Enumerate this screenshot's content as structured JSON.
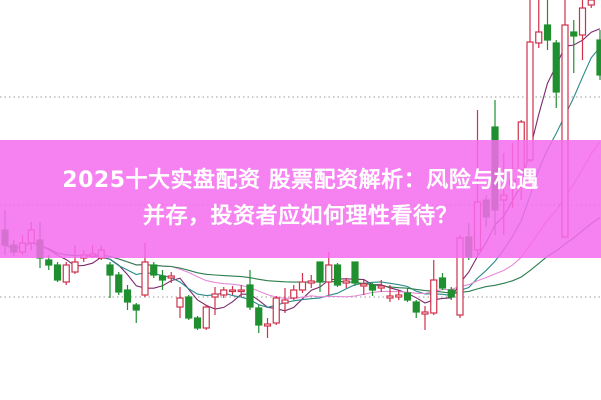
{
  "article": {
    "title_line1": "2025十大实盘配资 股票配资解析：风险与机遇",
    "title_line2": "并存，投资者应如何理性看待？"
  },
  "colors": {
    "banner": "#f56cee",
    "bull": "#d0304a",
    "bear": "#1f8f2f",
    "ma5": "#7b2a6e",
    "ma10": "#2a8a8a",
    "ma20": "#e38ad8",
    "ma40": "#2e7d4f",
    "grid": "#999999"
  },
  "chart_data": {
    "type": "candlestick",
    "title": "",
    "xlabel": "",
    "ylabel": "",
    "ylim": [
      0,
      40
    ],
    "grid": "dotted horizontal",
    "gridlines": [
      10.3,
      19.5,
      30.3
    ],
    "moving_averages": [
      5,
      10,
      20,
      40
    ],
    "candles": [
      [
        17.0,
        15.5,
        19.0,
        14.5
      ],
      [
        15.5,
        14.8,
        16.0,
        14.4
      ],
      [
        14.8,
        15.7,
        16.5,
        14.5
      ],
      [
        15.7,
        17.0,
        17.8,
        15.0
      ],
      [
        16.0,
        14.2,
        17.8,
        13.2
      ],
      [
        14.0,
        13.5,
        14.5,
        13.0
      ],
      [
        13.5,
        12.0,
        13.8,
        11.8
      ],
      [
        11.8,
        13.5,
        13.8,
        11.5
      ],
      [
        12.8,
        13.8,
        15.5,
        12.6
      ],
      [
        14.2,
        14.5,
        15.0,
        13.8
      ],
      [
        14.4,
        14.6,
        15.5,
        14.2
      ],
      [
        14.2,
        15.0,
        15.5,
        14.0
      ],
      [
        13.5,
        12.5,
        13.8,
        10.2
      ],
      [
        12.5,
        10.8,
        12.8,
        10.5
      ],
      [
        11.0,
        9.8,
        11.5,
        9.0
      ],
      [
        9.5,
        9.0,
        9.7,
        7.7
      ],
      [
        10.5,
        13.8,
        15.7,
        10.3
      ],
      [
        13.5,
        12.5,
        13.8,
        12.2
      ],
      [
        12.4,
        12.0,
        13.0,
        11.0
      ],
      [
        12.2,
        12.4,
        12.8,
        11.7
      ],
      [
        9.3,
        10.2,
        11.3,
        8.2
      ],
      [
        10.3,
        8.2,
        10.5,
        8.0
      ],
      [
        8.2,
        7.2,
        8.4,
        7.0
      ],
      [
        7.2,
        9.3,
        9.5,
        7.0
      ],
      [
        10.3,
        10.6,
        11.3,
        8.5
      ],
      [
        10.5,
        11.0,
        11.3,
        10.2
      ],
      [
        10.9,
        11.0,
        11.4,
        10.5
      ],
      [
        10.9,
        11.0,
        11.5,
        10.3
      ],
      [
        11.5,
        9.3,
        13.0,
        9.0
      ],
      [
        9.2,
        7.5,
        9.5,
        6.7
      ],
      [
        7.4,
        7.6,
        8.2,
        6.2
      ],
      [
        7.7,
        10.2,
        10.4,
        7.5
      ],
      [
        9.7,
        10.0,
        11.2,
        8.7
      ],
      [
        10.2,
        11.0,
        11.5,
        10.0
      ],
      [
        11.0,
        11.8,
        12.7,
        10.7
      ],
      [
        11.7,
        11.9,
        12.5,
        11.2
      ],
      [
        13.8,
        11.8,
        13.8,
        10.8
      ],
      [
        11.8,
        13.5,
        14.8,
        10.5
      ],
      [
        13.5,
        11.5,
        13.7,
        11.3
      ],
      [
        11.7,
        11.9,
        12.2,
        11.2
      ],
      [
        13.8,
        11.7,
        13.8,
        11.4
      ],
      [
        11.4,
        11.6,
        12.0,
        10.5
      ],
      [
        11.5,
        11.0,
        11.7,
        10.4
      ],
      [
        11.2,
        11.4,
        12.0,
        10.8
      ],
      [
        10.2,
        10.4,
        11.5,
        9.8
      ],
      [
        10.3,
        10.5,
        11.0,
        10.0
      ],
      [
        10.7,
        10.0,
        11.2,
        9.8
      ],
      [
        9.8,
        8.8,
        10.0,
        8.2
      ],
      [
        8.6,
        8.8,
        9.4,
        7.0
      ],
      [
        8.7,
        12.0,
        14.0,
        8.5
      ],
      [
        12.2,
        11.2,
        12.7,
        11.0
      ],
      [
        11.0,
        10.3,
        11.3,
        10.0
      ],
      [
        8.5,
        16.2,
        16.5,
        8.2
      ],
      [
        16.3,
        14.3,
        17.7,
        14.0
      ],
      [
        15.0,
        19.8,
        29.0,
        14.5
      ],
      [
        20.0,
        18.3,
        20.5,
        17.3
      ],
      [
        27.3,
        19.0,
        30.0,
        16.5
      ],
      [
        20.0,
        20.5,
        24.7,
        16.5
      ],
      [
        21.5,
        22.0,
        25.7,
        19.2
      ],
      [
        23.0,
        27.8,
        28.0,
        20.0
      ],
      [
        24.0,
        35.8,
        40.0,
        23.8
      ],
      [
        35.7,
        36.8,
        40.0,
        35.2
      ],
      [
        37.5,
        36.0,
        40.0,
        35.0
      ],
      [
        35.7,
        30.8,
        36.0,
        29.2
      ],
      [
        16.3,
        37.5,
        40.0,
        16.3
      ],
      [
        36.8,
        36.4,
        38.0,
        32.7
      ],
      [
        36.5,
        39.2,
        40.0,
        34.0
      ],
      [
        39.5,
        40.0,
        40.0,
        39.2
      ],
      [
        36.0,
        32.5,
        37.0,
        32.0
      ]
    ],
    "candle_fields": [
      "open",
      "close",
      "high",
      "low"
    ]
  }
}
